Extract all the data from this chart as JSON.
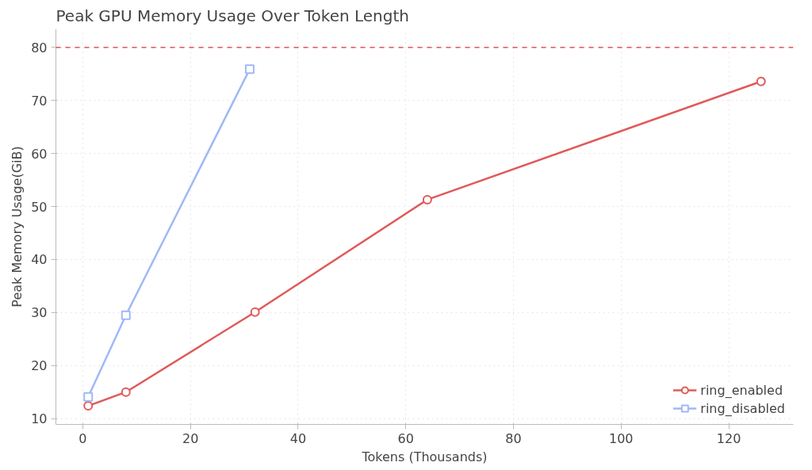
{
  "chart_data": {
    "type": "line",
    "title": "Peak GPU Memory Usage Over Token Length",
    "xlabel": "Tokens (Thousands)",
    "ylabel": "Peak Memory Usage(GiB)",
    "xlim": [
      -5,
      132
    ],
    "xticks": [
      0,
      20,
      40,
      60,
      80,
      100,
      120
    ],
    "ylim": [
      8.9,
      83.5
    ],
    "yticks": [
      10,
      20,
      30,
      40,
      50,
      60,
      70,
      80
    ],
    "series": [
      {
        "name": "ring_enabled",
        "color": "#e05a5a",
        "marker": "circle",
        "x": [
          1,
          8,
          32,
          64,
          126
        ],
        "values": [
          12.4,
          15.0,
          30.1,
          51.3,
          73.6
        ]
      },
      {
        "name": "ring_disabled",
        "color": "#a0b8f8",
        "marker": "square",
        "x": [
          1,
          8,
          31
        ],
        "values": [
          14.1,
          29.5,
          75.9
        ]
      }
    ],
    "ref_lines": [
      {
        "axis": "y",
        "value": 80,
        "color": "#e03030",
        "line_style": "dashed"
      }
    ],
    "grid": true,
    "legend": "bottom right",
    "line_style": "solid"
  }
}
